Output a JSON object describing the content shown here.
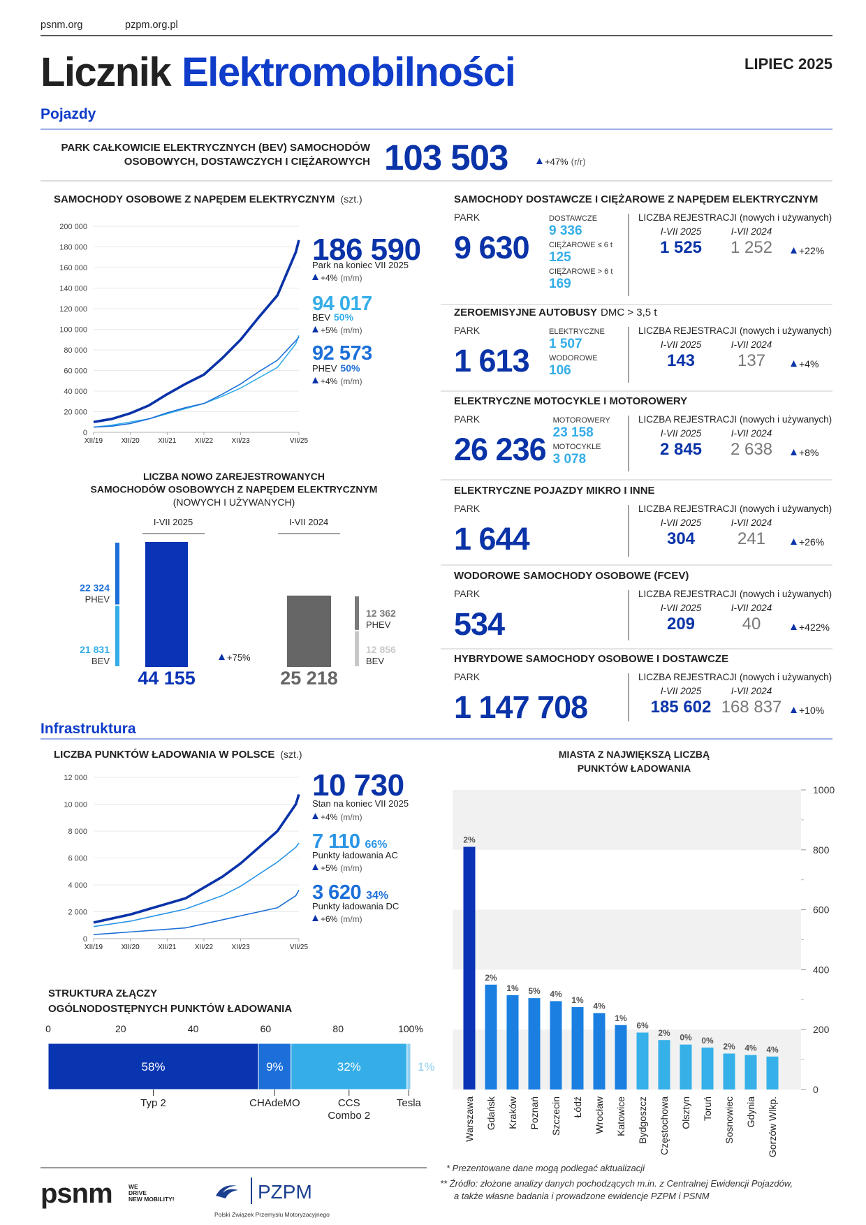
{
  "header": {
    "links": [
      "psnm.org",
      "pzpm.org.pl"
    ],
    "title": [
      "Licznik",
      "Elektromobilności"
    ],
    "date": "LIPIEC 2025"
  },
  "sections": [
    "Pojazdy",
    "Infrastruktura"
  ],
  "headline": {
    "label": [
      "PARK CAŁKOWICIE ELEKTRYCZNYCH (BEV) SAMOCHODÓW",
      "OSOBOWYCH, DOSTAWCZYCH I CIĘŻAROWYCH"
    ],
    "value": "103 503",
    "change": "+47%",
    "change_unit": "(r/r)"
  },
  "chart_data": [
    {
      "type": "line",
      "title": "SAMOCHODY OSOBOWE Z NAPĘDEM ELEKTRYCZNYM",
      "unit": "(szt.)",
      "x": [
        0,
        6,
        12,
        18,
        24,
        30,
        36,
        42,
        48,
        54,
        60,
        66,
        67
      ],
      "xlim": [
        0,
        67
      ],
      "xticks": [
        {
          "value": 0,
          "label": "XII/19"
        },
        {
          "value": 12,
          "label": "XII/20"
        },
        {
          "value": 24,
          "label": "XII/21"
        },
        {
          "value": 36,
          "label": "XII/22"
        },
        {
          "value": 48,
          "label": "XII/23"
        },
        {
          "value": 67,
          "label": "VII/25"
        }
      ],
      "ylim": [
        0,
        200000
      ],
      "yticks": [
        0,
        {
          "value": 20000,
          "label": "20 000"
        },
        {
          "value": 40000,
          "label": "40 000"
        },
        {
          "value": 60000,
          "label": "60 000"
        },
        {
          "value": 80000,
          "label": "80 000"
        },
        {
          "value": 100000,
          "label": "100 000"
        },
        {
          "value": 120000,
          "label": "120 000"
        },
        {
          "value": 140000,
          "label": "140 000"
        },
        {
          "value": 160000,
          "label": "160 000"
        },
        {
          "value": 180000,
          "label": "180 000"
        },
        {
          "value": 200000,
          "label": "200 000"
        }
      ],
      "grid": true,
      "series": [
        {
          "name": "Park na koniec VII 2025",
          "color": "#0a33a8",
          "values": [
            10000,
            13000,
            18500,
            26000,
            37000,
            47000,
            56000,
            72000,
            90000,
            112000,
            133000,
            175000,
            186590
          ],
          "last_label": "186 590",
          "change": "+4%",
          "change_unit": "(m/m)"
        },
        {
          "name": "BEV",
          "color": "#35aee8",
          "values": [
            5000,
            7000,
            10000,
            13000,
            18000,
            23000,
            28000,
            35000,
            43000,
            53000,
            63000,
            86000,
            94017
          ],
          "last_label": "94 017",
          "share": "50%",
          "change": "+5%",
          "change_unit": "(m/m)"
        },
        {
          "name": "PHEV",
          "color": "#1c6fd8",
          "values": [
            5000,
            6000,
            8500,
            13000,
            19000,
            24000,
            28000,
            37000,
            47000,
            59000,
            70000,
            89000,
            92573
          ],
          "last_label": "92 573",
          "share": "50%",
          "change": "+4%",
          "change_unit": "(m/m)"
        }
      ]
    },
    {
      "type": "stacked_bar",
      "title": [
        "LICZBA NOWO ZAREJESTROWANYCH",
        "SAMOCHODÓW OSOBOWYCH Z NAPĘDEM ELEKTRYCZNYM",
        "(NOWYCH I UŻYWANYCH)"
      ],
      "categories": [
        "I-VII 2025",
        "I-VII 2024"
      ],
      "series": [
        {
          "name": "BEV",
          "values": [
            21831,
            12856
          ],
          "value_labels": [
            "21 831",
            "12 856"
          ],
          "colors": [
            "#35aee8",
            "#c8c8c8"
          ]
        },
        {
          "name": "PHEV",
          "values": [
            22324,
            12362
          ],
          "value_labels": [
            "22 324",
            "12 362"
          ],
          "colors": [
            "#1c6fd8",
            "#7a7a7a"
          ]
        }
      ],
      "totals": [
        44155,
        25218
      ],
      "total_labels": [
        "44 155",
        "25 218"
      ],
      "total_colors": [
        "#0a33b5",
        "#666666"
      ],
      "change": "+75%"
    },
    {
      "type": "line",
      "title": "LICZBA PUNKTÓW ŁADOWANIA W POLSCE",
      "unit": "(szt.)",
      "x": [
        0,
        6,
        12,
        18,
        24,
        30,
        36,
        42,
        48,
        54,
        60,
        66,
        67
      ],
      "xlim": [
        0,
        67
      ],
      "xticks": [
        {
          "value": 0,
          "label": "XII/19"
        },
        {
          "value": 12,
          "label": "XII/20"
        },
        {
          "value": 24,
          "label": "XII/21"
        },
        {
          "value": 36,
          "label": "XII/22"
        },
        {
          "value": 48,
          "label": "XII/23"
        },
        {
          "value": 67,
          "label": "VII/25"
        }
      ],
      "ylim": [
        0,
        12000
      ],
      "yticks": [
        0,
        {
          "value": 2000,
          "label": "2 000"
        },
        {
          "value": 4000,
          "label": "4 000"
        },
        {
          "value": 6000,
          "label": "6 000"
        },
        {
          "value": 8000,
          "label": "8 000"
        },
        {
          "value": 10000,
          "label": "10 000"
        },
        {
          "value": 12000,
          "label": "12 000"
        }
      ],
      "grid": true,
      "series": [
        {
          "name": "Stan na koniec VII 2025",
          "color": "#0a33a8",
          "values": [
            1200,
            1500,
            1800,
            2200,
            2600,
            3000,
            3800,
            4600,
            5600,
            6800,
            8000,
            10000,
            10730
          ],
          "last_label": "10 730",
          "change": "+4%",
          "change_unit": "(m/m)"
        },
        {
          "name": "Punkty ładowania AC",
          "color": "#2a95e6",
          "values": [
            900,
            1100,
            1300,
            1600,
            1900,
            2200,
            2700,
            3200,
            3900,
            4800,
            5700,
            6800,
            7110
          ],
          "last_label": "7 110",
          "share": "66%",
          "change": "+5%",
          "change_unit": "(m/m)"
        },
        {
          "name": "Punkty ładowania DC",
          "color": "#1c6fd8",
          "values": [
            300,
            400,
            500,
            600,
            700,
            800,
            1100,
            1400,
            1700,
            2000,
            2300,
            3200,
            3620
          ],
          "last_label": "3 620",
          "share": "34%",
          "change": "+6%",
          "change_unit": "(m/m)"
        }
      ]
    },
    {
      "type": "stacked_hbar",
      "title": [
        "STRUKTURA ZŁĄCZY",
        "OGÓLNODOSTĘPNYCH PUNKTÓW ŁADOWANIA"
      ],
      "categories": [
        "Typ 2",
        "CHAdeMO",
        "CCS Combo 2",
        "Tesla"
      ],
      "values": [
        58,
        9,
        32,
        1
      ],
      "value_labels": [
        "58%",
        "9%",
        "32%",
        "1%"
      ],
      "colors": [
        "#0a35b0",
        "#1c6fd8",
        "#35aee8",
        "#8fd0f0"
      ],
      "xlim": [
        0,
        100
      ],
      "xticks": [
        0,
        20,
        40,
        60,
        80,
        {
          "value": 100,
          "label": "100%"
        }
      ]
    },
    {
      "type": "bar",
      "title": [
        "MIASTA Z NAJWIĘKSZĄ LICZBĄ",
        "PUNKTÓW ŁADOWANIA"
      ],
      "categories": [
        "Warszawa",
        "Gdańsk",
        "Kraków",
        "Poznań",
        "Szczecin",
        "Łódź",
        "Wrocław",
        "Katowice",
        "Bydgoszcz",
        "Częstochowa",
        "Olsztyn",
        "Toruń",
        "Sosnowiec",
        "Gdynia",
        "Gorzów Wlkp."
      ],
      "values": [
        810,
        350,
        315,
        305,
        295,
        275,
        255,
        215,
        190,
        165,
        150,
        140,
        120,
        115,
        110
      ],
      "annotations": [
        "2%",
        "2%",
        "1%",
        "5%",
        "4%",
        "1%",
        "4%",
        "1%",
        "6%",
        "2%",
        "0%",
        "0%",
        "2%",
        "4%",
        "4%"
      ],
      "colors": [
        "#0a33b5",
        "#1a7fe0",
        "#1a7fe0",
        "#1a7fe0",
        "#1a7fe0",
        "#1a7fe0",
        "#1a7fe0",
        "#1a7fe0",
        "#35b0e8",
        "#35b0e8",
        "#35b0e8",
        "#35b0e8",
        "#35b0e8",
        "#35b0e8",
        "#35b0e8"
      ],
      "ylim": [
        0,
        1000
      ],
      "yticks": [
        0,
        200,
        400,
        600,
        800,
        1000
      ],
      "minor_yticks": [
        100,
        300,
        500,
        700,
        900
      ],
      "bands": true
    }
  ],
  "panels": [
    {
      "title": "SAMOCHODY DOSTAWCZE I CIĘŻAROWE Z NAPĘDEM ELEKTRYCZNYM",
      "park_label": "PARK",
      "park_value": "9 630",
      "items": [
        {
          "label": "DOSTAWCZE",
          "value": "9 336"
        },
        {
          "label": "CIĘŻAROWE ≤ 6 t",
          "value": "125"
        },
        {
          "label": "CIĘŻAROWE > 6 t",
          "value": "169"
        }
      ],
      "reg_title": "LICZBA REJESTRACJI",
      "reg_note": "(nowych i używanych)",
      "reg_periods": [
        "I-VII 2025",
        "I-VII 2024"
      ],
      "reg_values": [
        "1 525",
        "1 252"
      ],
      "reg_change": "+22%"
    },
    {
      "title": "ZEROEMISYJNE AUTOBUSY",
      "title_note": "DMC > 3,5 t",
      "park_label": "PARK",
      "park_value": "1 613",
      "items": [
        {
          "label": "ELEKTRYCZNE",
          "value": "1 507"
        },
        {
          "label": "WODOROWE",
          "value": "106"
        }
      ],
      "reg_title": "LICZBA REJESTRACJI",
      "reg_note": "(nowych i używanych)",
      "reg_periods": [
        "I-VII 2025",
        "I-VII 2024"
      ],
      "reg_values": [
        "143",
        "137"
      ],
      "reg_change": "+4%"
    },
    {
      "title": "ELEKTRYCZNE MOTOCYKLE I MOTOROWERY",
      "park_label": "PARK",
      "park_value": "26 236",
      "items": [
        {
          "label": "MOTOROWERY",
          "value": "23 158"
        },
        {
          "label": "MOTOCYKLE",
          "value": "3 078"
        }
      ],
      "reg_title": "LICZBA REJESTRACJI",
      "reg_note": "(nowych i używanych)",
      "reg_periods": [
        "I-VII 2025",
        "I-VII 2024"
      ],
      "reg_values": [
        "2 845",
        "2 638"
      ],
      "reg_change": "+8%"
    },
    {
      "title": "ELEKTRYCZNE POJAZDY MIKRO I INNE",
      "park_label": "PARK",
      "park_value": "1 644",
      "items": [],
      "reg_title": "LICZBA REJESTRACJI",
      "reg_note": "(nowych i używanych)",
      "reg_periods": [
        "I-VII 2025",
        "I-VII 2024"
      ],
      "reg_values": [
        "304",
        "241"
      ],
      "reg_change": "+26%"
    },
    {
      "title": "WODOROWE SAMOCHODY OSOBOWE (FCEV)",
      "park_label": "PARK",
      "park_value": "534",
      "items": [],
      "reg_title": "LICZBA REJESTRACJI",
      "reg_note": "(nowych i używanych)",
      "reg_periods": [
        "I-VII 2025",
        "I-VII 2024"
      ],
      "reg_values": [
        "209",
        "40"
      ],
      "reg_change": "+422%"
    },
    {
      "title": "HYBRYDOWE SAMOCHODY OSOBOWE I DOSTAWCZE",
      "park_label": "PARK",
      "park_value": "1 147 708",
      "items": [],
      "reg_title": "LICZBA REJESTRACJI",
      "reg_note": "(nowych i używanych)",
      "reg_periods": [
        "I-VII 2025",
        "I-VII 2024"
      ],
      "reg_values": [
        "185 602",
        "168 837"
      ],
      "reg_change": "+10%"
    }
  ],
  "footer": {
    "psnm": "psnm",
    "slogan": [
      "WE",
      "DRIVE",
      "NEW MOBILITY!"
    ],
    "pzpm": "PZPM",
    "pzpm_name": "Polski Związek Przemysłu Motoryzacyjnego",
    "notes": [
      "* Prezentowane dane mogą podlegać aktualizacji",
      "** Źródło: złożone analizy danych pochodzących m.in. z Centralnej Ewidencji Pojazdów,",
      "a także własne badania i prowadzone ewidencje PZPM i PSNM"
    ]
  }
}
